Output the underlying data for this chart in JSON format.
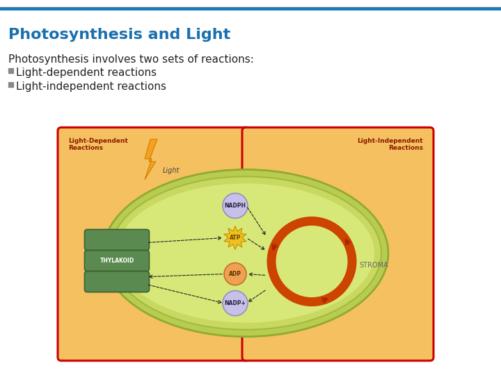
{
  "title": "Photosynthesis and Light",
  "title_color": "#1a6faf",
  "title_fontsize": 16,
  "top_line_color": "#1a7abf",
  "body_line1": "Photosynthesis involves two sets of reactions:",
  "bullet1": "Light-dependent reactions",
  "bullet2": "Light-independent reactions",
  "body_fontsize": 11,
  "bullet_color": "#888888",
  "body_color": "#222222",
  "bg_color": "#ffffff",
  "diagram_bg": "#f5c060",
  "left_box_border": "#cc0000",
  "right_box_border": "#cc0000",
  "label_left": "Light-Dependent\nReactions",
  "label_right": "Light-Independent\nReactions",
  "label_color": "#8b1a00",
  "label_fontsize": 6.5,
  "thylakoid_label": "THYLAKOID",
  "stroma_label": "STROMA",
  "light_label": "Light",
  "nadph_label": "NADPH",
  "atp_label": "ATP",
  "adp_label": "ADP",
  "nadp_label": "NADP+",
  "cycle_color": "#cc4400",
  "arrow_color": "#333333",
  "chloro_outer_color": "#b8cc50",
  "chloro_mid_color": "#c8d860",
  "chloro_inner_color": "#d8e878",
  "thylakoid_color": "#5a8a50",
  "thylakoid_edge": "#3a6030"
}
